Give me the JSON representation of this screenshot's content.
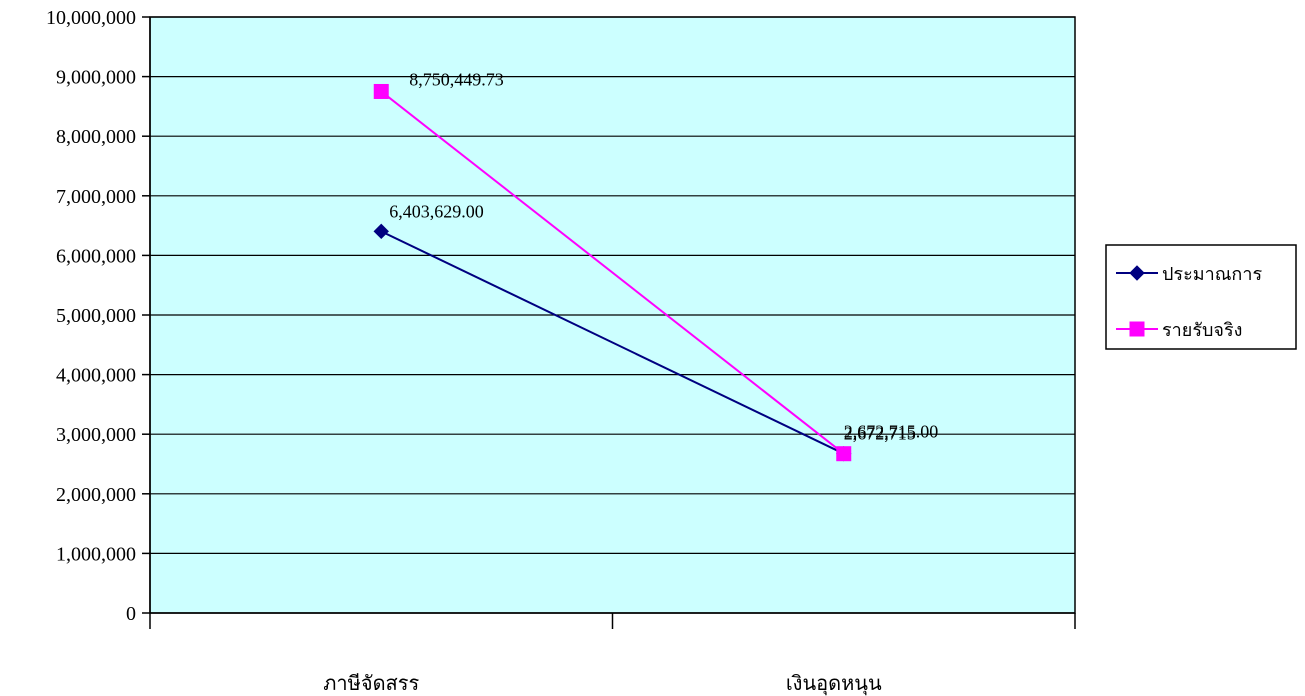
{
  "chart_data": {
    "type": "line",
    "categories": [
      "ภาษีจัดสรร",
      "เงินอุดหนุน"
    ],
    "series": [
      {
        "name": "ประมาณการ",
        "values": [
          6403629,
          2672715
        ],
        "data_labels": [
          "6,403,629.00",
          "2,672,715"
        ],
        "color": "#000080",
        "marker": "diamond"
      },
      {
        "name": "รายรับจริง",
        "values": [
          8750449.73,
          2672715
        ],
        "data_labels": [
          "8,750,449.73",
          "2,672,715.00"
        ],
        "color": "#FF00FF",
        "marker": "square"
      }
    ],
    "ylim": [
      0,
      10000000
    ],
    "yticks": [
      0,
      1000000,
      2000000,
      3000000,
      4000000,
      5000000,
      6000000,
      7000000,
      8000000,
      9000000,
      10000000
    ],
    "ytick_labels": [
      "0",
      "1,000,000",
      "2,000,000",
      "3,000,000",
      "4,000,000",
      "5,000,000",
      "6,000,000",
      "7,000,000",
      "8,000,000",
      "9,000,000",
      "10,000,000"
    ],
    "grid": true,
    "legend_position": "right",
    "plot_background": "#CCFFFF"
  }
}
